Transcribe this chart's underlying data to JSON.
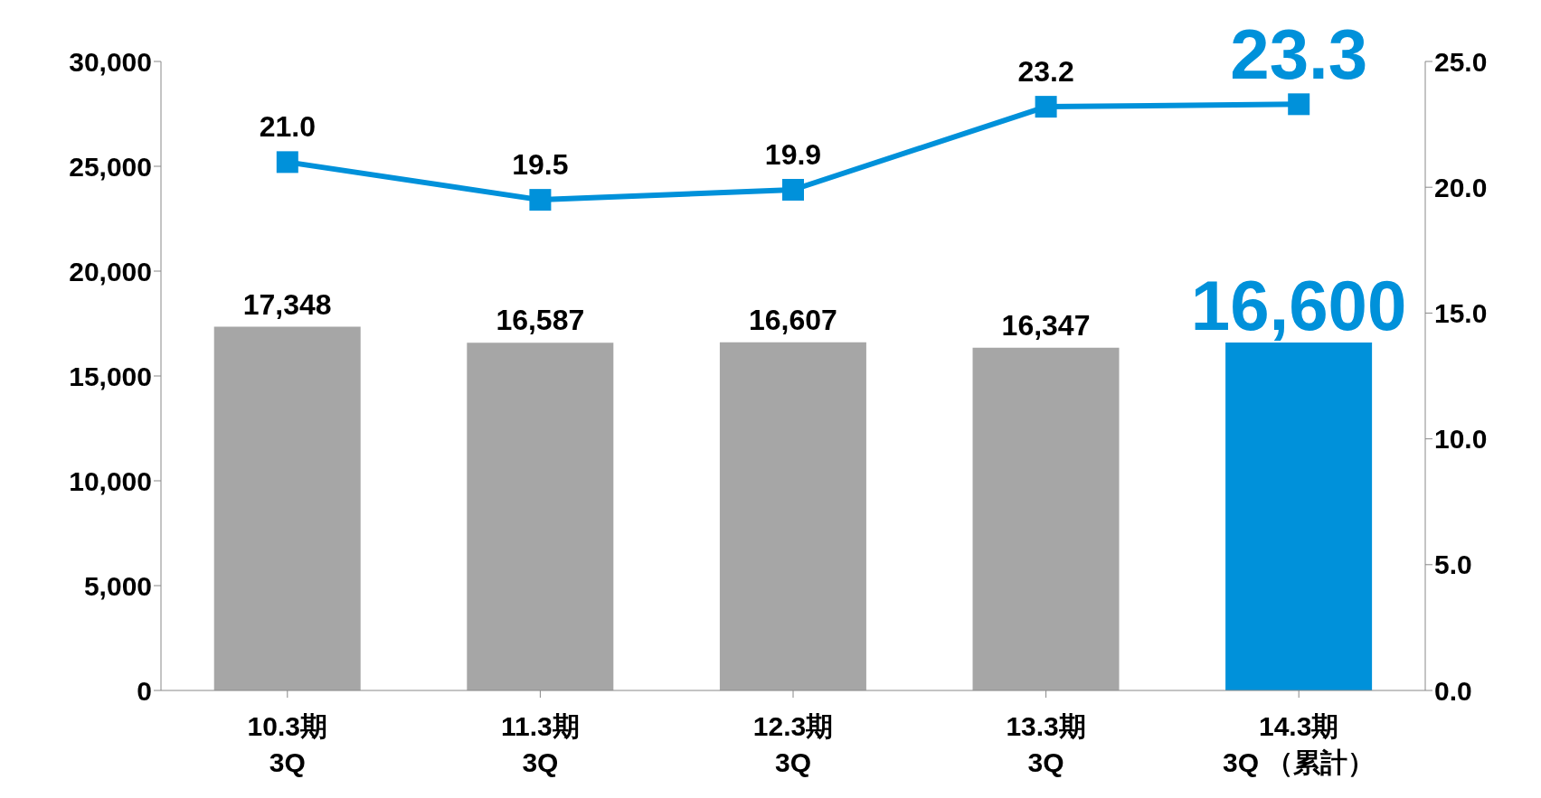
{
  "chart_data": {
    "type": "bar",
    "categories": [
      "10.3期\n3Q",
      "11.3期\n3Q",
      "12.3期\n3Q",
      "13.3期\n3Q",
      "14.3期\n3Q （累計）"
    ],
    "series": [
      {
        "colors": [
          "#a6a6a6",
          "#a6a6a6",
          "#a6a6a6",
          "#a6a6a6",
          "#0091da"
        ],
        "values": [
          17348,
          16587,
          16607,
          16347,
          16600
        ],
        "value_labels": [
          "17,348",
          "16,587",
          "16,607",
          "16,347",
          "16,600"
        ]
      },
      {
        "type": "line",
        "axis": "y2",
        "color": "#0091da",
        "marker": "square",
        "values": [
          21.0,
          19.5,
          19.9,
          23.2,
          23.3
        ],
        "value_labels": [
          "21.0",
          "19.5",
          "19.9",
          "23.2",
          "23.3"
        ]
      }
    ],
    "ylim": [
      0,
      30000
    ],
    "yticks": [
      {
        "value": 0,
        "label": "0"
      },
      {
        "value": 5000,
        "label": "5,000"
      },
      {
        "value": 10000,
        "label": "10,000"
      },
      {
        "value": 15000,
        "label": "15,000"
      },
      {
        "value": 20000,
        "label": "20,000"
      },
      {
        "value": 25000,
        "label": "25,000"
      },
      {
        "value": 30000,
        "label": "30,000"
      }
    ],
    "y2lim": [
      0,
      25
    ],
    "y2ticks": [
      {
        "value": 0,
        "label": "0.0"
      },
      {
        "value": 5,
        "label": "5.0"
      },
      {
        "value": 10,
        "label": "10.0"
      },
      {
        "value": 15,
        "label": "15.0"
      },
      {
        "value": 20,
        "label": "20.0"
      },
      {
        "value": 25,
        "label": "25.0"
      }
    ],
    "grid": false,
    "legend": false
  }
}
